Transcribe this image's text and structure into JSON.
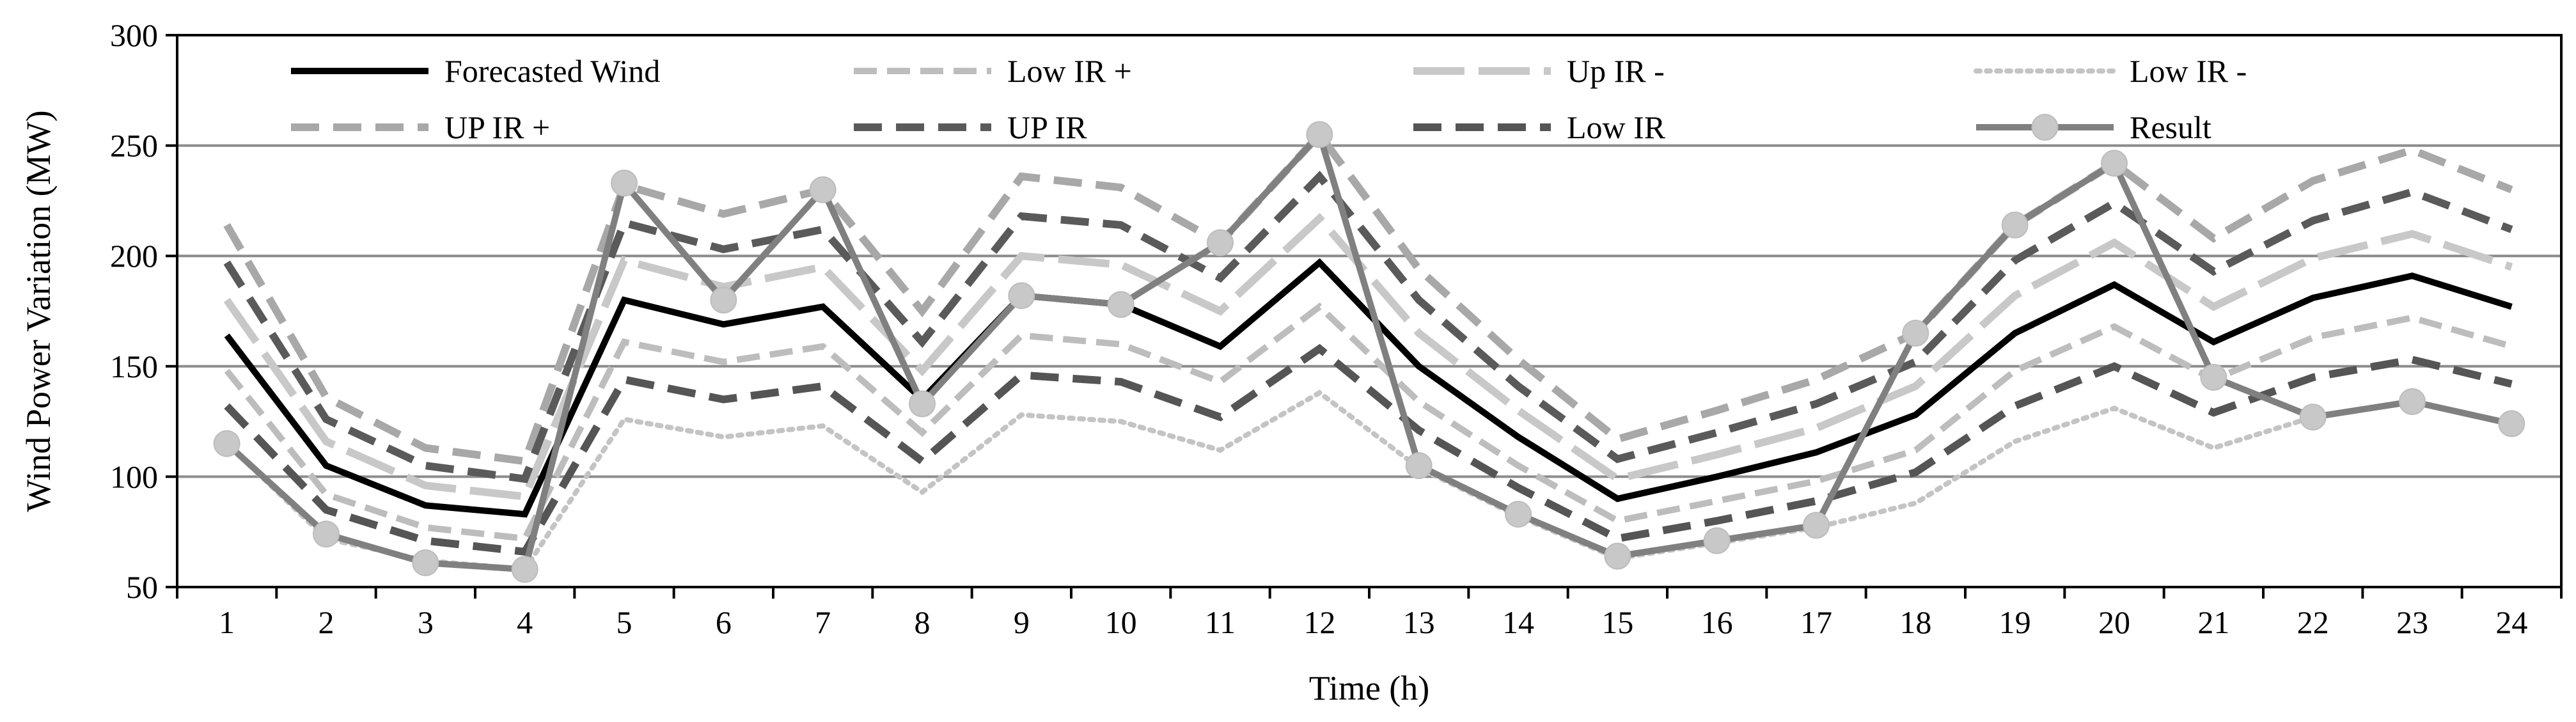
{
  "chart_data": {
    "type": "line",
    "title": "",
    "xlabel": "Time (h)",
    "ylabel": "Wind Power Variation (MW)",
    "ylim": [
      50,
      300
    ],
    "yticks": [
      50,
      100,
      150,
      200,
      250,
      300
    ],
    "grid": true,
    "legend_position": "top",
    "categories": [
      "1",
      "2",
      "3",
      "4",
      "5",
      "6",
      "7",
      "8",
      "9",
      "10",
      "11",
      "12",
      "13",
      "14",
      "15",
      "16",
      "17",
      "18",
      "19",
      "20",
      "21",
      "22",
      "23",
      "24"
    ],
    "series": [
      {
        "name": "Forecasted Wind",
        "color": "#000000",
        "dash": "solid",
        "marker": "none",
        "values": [
          164,
          105,
          87,
          83,
          180,
          169,
          177,
          135,
          182,
          178,
          159,
          197,
          150,
          118,
          90,
          100,
          111,
          128,
          165,
          187,
          161,
          181,
          191,
          177
        ]
      },
      {
        "name": "Low IR +",
        "color": "#bdbdbd",
        "dash": "short",
        "marker": "none",
        "values": [
          148,
          92,
          77,
          72,
          161,
          152,
          159,
          120,
          164,
          160,
          143,
          177,
          134,
          105,
          80,
          89,
          98,
          112,
          148,
          168,
          144,
          163,
          172,
          159
        ]
      },
      {
        "name": "Up IR -",
        "color": "#c8c8c8",
        "dash": "long",
        "marker": "none",
        "values": [
          180,
          116,
          96,
          91,
          198,
          186,
          195,
          148,
          200,
          196,
          175,
          217,
          165,
          130,
          99,
          110,
          122,
          141,
          182,
          206,
          177,
          199,
          210,
          195
        ]
      },
      {
        "name": "Low IR -",
        "color": "#c4c4c4",
        "dash": "dot",
        "marker": "none",
        "values": [
          115,
          72,
          62,
          58,
          126,
          118,
          123,
          93,
          128,
          125,
          112,
          138,
          104,
          82,
          63,
          70,
          77,
          88,
          116,
          131,
          113,
          127,
          134,
          124
        ]
      },
      {
        "name": "UP IR +",
        "color": "#a8a8a8",
        "dash": "medium",
        "marker": "none",
        "values": [
          214,
          136,
          113,
          107,
          232,
          219,
          230,
          175,
          236,
          231,
          206,
          255,
          194,
          153,
          117,
          130,
          144,
          165,
          214,
          242,
          208,
          234,
          248,
          230
        ]
      },
      {
        "name": "UP IR",
        "color": "#5a5a5a",
        "dash": "medium",
        "marker": "none",
        "values": [
          197,
          126,
          105,
          99,
          215,
          203,
          212,
          161,
          218,
          214,
          190,
          236,
          180,
          141,
          108,
          120,
          133,
          152,
          198,
          224,
          193,
          216,
          229,
          212
        ]
      },
      {
        "name": "Low IR",
        "color": "#555555",
        "dash": "medium",
        "marker": "none",
        "values": [
          132,
          85,
          71,
          66,
          144,
          135,
          141,
          107,
          146,
          143,
          127,
          158,
          121,
          95,
          72,
          80,
          89,
          102,
          132,
          150,
          129,
          145,
          153,
          142
        ]
      },
      {
        "name": "Result",
        "color": "#808080",
        "dash": "solid",
        "marker": "circle",
        "values": [
          115,
          74,
          61,
          58,
          233,
          180,
          230,
          133,
          182,
          178,
          206,
          255,
          105,
          83,
          64,
          71,
          78,
          165,
          214,
          242,
          145,
          127,
          134,
          124
        ]
      }
    ]
  }
}
